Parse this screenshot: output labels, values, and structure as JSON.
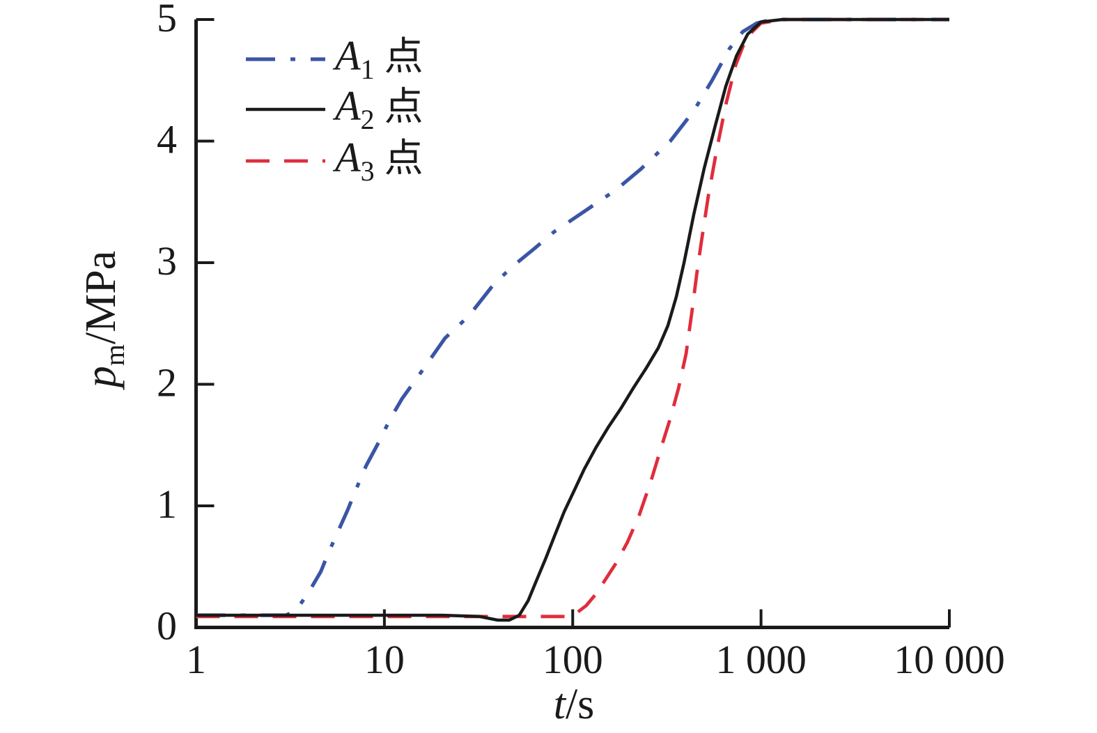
{
  "chart_data": {
    "type": "line",
    "title": "",
    "xlabel": {
      "sym": "t",
      "unit": "/s"
    },
    "ylabel": {
      "sym": "p",
      "sub": "m",
      "unit": "/MPa"
    },
    "x_axis": {
      "scale": "log",
      "domain": [
        1,
        10000
      ],
      "ticks": [
        {
          "v": 1,
          "label": "1"
        },
        {
          "v": 10,
          "label": "10"
        },
        {
          "v": 100,
          "label": "100"
        },
        {
          "v": 1000,
          "label": "1 000"
        },
        {
          "v": 10000,
          "label": "10 000"
        }
      ]
    },
    "y_axis": {
      "scale": "linear",
      "domain": [
        0,
        5
      ],
      "ticks": [
        {
          "v": 0,
          "label": "0"
        },
        {
          "v": 1,
          "label": "1"
        },
        {
          "v": 2,
          "label": "2"
        },
        {
          "v": 3,
          "label": "3"
        },
        {
          "v": 4,
          "label": "4"
        },
        {
          "v": 5,
          "label": "5"
        }
      ]
    },
    "grid": false,
    "legend_position": "top-left",
    "axis_color": "#1a1a1a",
    "series": [
      {
        "name": "A1 点",
        "base": "A",
        "sub": "1",
        "suffix": "点",
        "color": "#3a55a5",
        "style": "dashdot",
        "width": 5.2,
        "points": [
          [
            1,
            0.1
          ],
          [
            2,
            0.1
          ],
          [
            3,
            0.1
          ],
          [
            3.4,
            0.14
          ],
          [
            4,
            0.3
          ],
          [
            4.6,
            0.46
          ],
          [
            5,
            0.6
          ],
          [
            5.6,
            0.77
          ],
          [
            6.4,
            0.97
          ],
          [
            7,
            1.12
          ],
          [
            8,
            1.33
          ],
          [
            9.3,
            1.52
          ],
          [
            10.7,
            1.71
          ],
          [
            12.4,
            1.88
          ],
          [
            16,
            2.12
          ],
          [
            21,
            2.38
          ],
          [
            28,
            2.56
          ],
          [
            38,
            2.82
          ],
          [
            48,
            2.97
          ],
          [
            63,
            3.12
          ],
          [
            79,
            3.25
          ],
          [
            120,
            3.44
          ],
          [
            170,
            3.6
          ],
          [
            230,
            3.77
          ],
          [
            330,
            4.0
          ],
          [
            440,
            4.25
          ],
          [
            550,
            4.5
          ],
          [
            680,
            4.76
          ],
          [
            800,
            4.9
          ],
          [
            950,
            4.97
          ],
          [
            1150,
            5.0
          ],
          [
            3000,
            5.0
          ],
          [
            10000,
            5.0
          ]
        ]
      },
      {
        "name": "A2 点",
        "base": "A",
        "sub": "2",
        "suffix": "点",
        "color": "#1a1a1a",
        "style": "solid",
        "width": 4.5,
        "points": [
          [
            1,
            0.1
          ],
          [
            20,
            0.1
          ],
          [
            32,
            0.09
          ],
          [
            40,
            0.06
          ],
          [
            46,
            0.06
          ],
          [
            52,
            0.1
          ],
          [
            58,
            0.22
          ],
          [
            64,
            0.38
          ],
          [
            72,
            0.57
          ],
          [
            80,
            0.75
          ],
          [
            90,
            0.95
          ],
          [
            100,
            1.1
          ],
          [
            115,
            1.3
          ],
          [
            133,
            1.48
          ],
          [
            155,
            1.65
          ],
          [
            180,
            1.8
          ],
          [
            210,
            1.97
          ],
          [
            245,
            2.13
          ],
          [
            285,
            2.3
          ],
          [
            320,
            2.48
          ],
          [
            355,
            2.72
          ],
          [
            390,
            3.0
          ],
          [
            440,
            3.4
          ],
          [
            500,
            3.78
          ],
          [
            570,
            4.12
          ],
          [
            650,
            4.45
          ],
          [
            740,
            4.7
          ],
          [
            850,
            4.88
          ],
          [
            1000,
            4.98
          ],
          [
            1300,
            5.0
          ],
          [
            10000,
            5.0
          ]
        ]
      },
      {
        "name": "A3 点",
        "base": "A",
        "sub": "3",
        "suffix": "点",
        "color": "#e02d3c",
        "style": "dashed",
        "width": 4.8,
        "points": [
          [
            1,
            0.09
          ],
          [
            60,
            0.09
          ],
          [
            95,
            0.09
          ],
          [
            105,
            0.12
          ],
          [
            118,
            0.18
          ],
          [
            132,
            0.27
          ],
          [
            150,
            0.4
          ],
          [
            170,
            0.53
          ],
          [
            195,
            0.7
          ],
          [
            225,
            0.92
          ],
          [
            260,
            1.2
          ],
          [
            295,
            1.48
          ],
          [
            330,
            1.72
          ],
          [
            365,
            1.97
          ],
          [
            400,
            2.25
          ],
          [
            430,
            2.6
          ],
          [
            455,
            2.9
          ],
          [
            480,
            3.15
          ],
          [
            525,
            3.55
          ],
          [
            585,
            3.95
          ],
          [
            655,
            4.32
          ],
          [
            735,
            4.63
          ],
          [
            835,
            4.85
          ],
          [
            1000,
            4.97
          ],
          [
            1300,
            5.0
          ],
          [
            10000,
            5.0
          ]
        ]
      }
    ]
  }
}
